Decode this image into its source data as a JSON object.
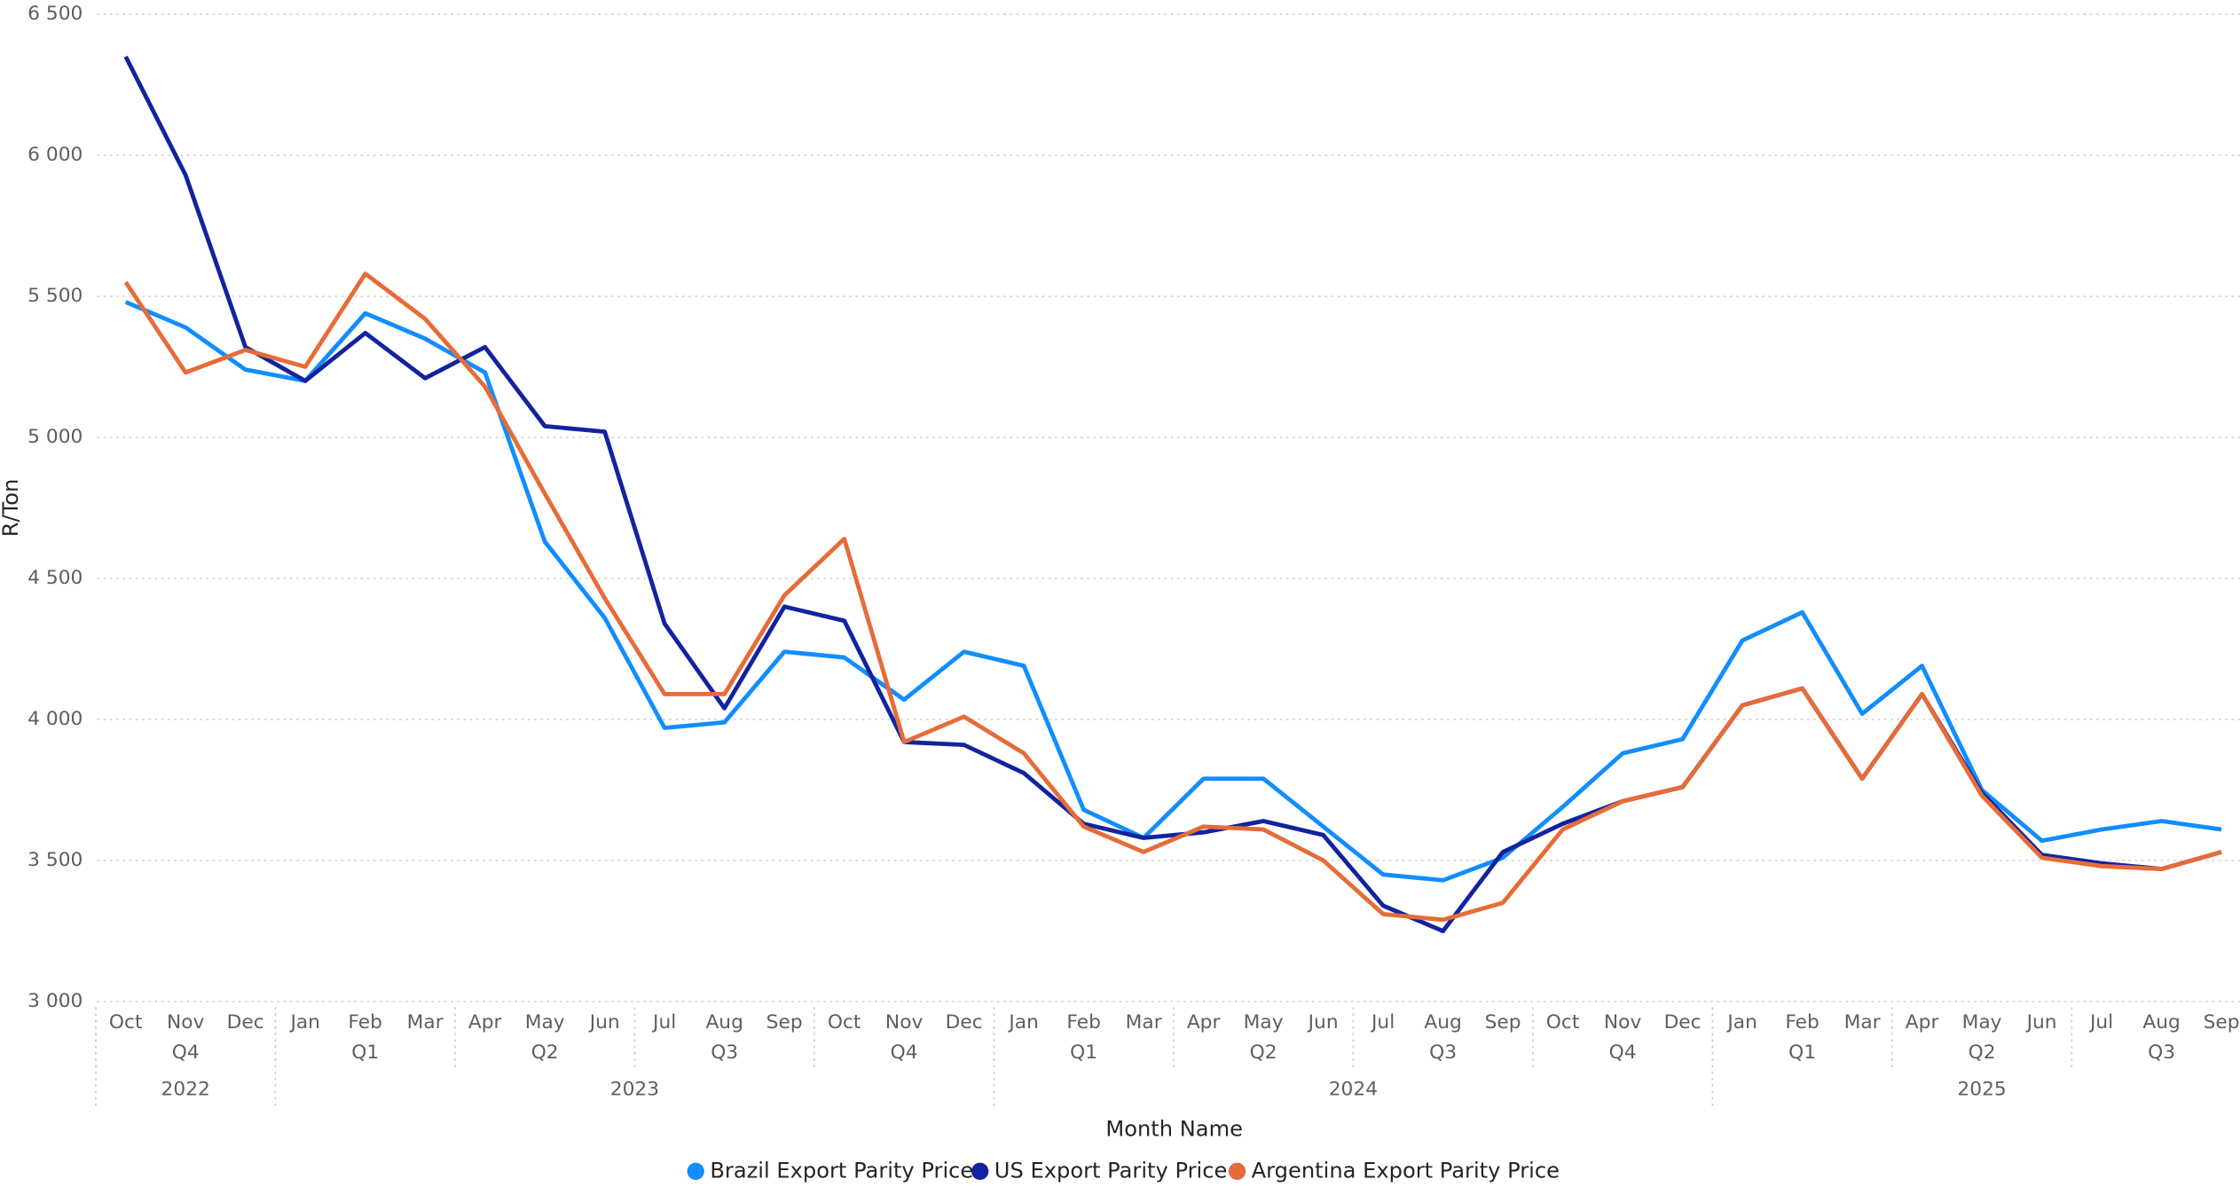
{
  "chart_data": {
    "type": "line",
    "y_label": "R/Ton",
    "x_label": "Month Name",
    "categories": [
      "Oct",
      "Nov",
      "Dec",
      "Jan",
      "Feb",
      "Mar",
      "Apr",
      "May",
      "Jun",
      "Jul",
      "Aug",
      "Sep",
      "Oct",
      "Nov",
      "Dec",
      "Jan",
      "Feb",
      "Mar",
      "Apr",
      "May",
      "Jun",
      "Jul",
      "Aug",
      "Sep",
      "Oct",
      "Nov",
      "Dec",
      "Jan",
      "Feb",
      "Mar",
      "Apr",
      "May",
      "Jun",
      "Jul",
      "Aug",
      "Sep"
    ],
    "quarters": [
      "Q4",
      "Q1",
      "Q2",
      "Q3",
      "Q4",
      "Q1",
      "Q2",
      "Q3",
      "Q4",
      "Q1",
      "Q2",
      "Q3"
    ],
    "years": [
      "2022",
      "2023",
      "2024",
      "2025"
    ],
    "ylim": [
      3000,
      6500
    ],
    "yticks": [
      {
        "value": 3000,
        "label": "3 000"
      },
      {
        "value": 3500,
        "label": "3 500"
      },
      {
        "value": 4000,
        "label": "4 000"
      },
      {
        "value": 4500,
        "label": "4 500"
      },
      {
        "value": 5000,
        "label": "5 000"
      },
      {
        "value": 5500,
        "label": "5 500"
      },
      {
        "value": 6000,
        "label": "6 000"
      },
      {
        "value": 6500,
        "label": "6 500"
      }
    ],
    "grid": true,
    "legend": "bottom",
    "series": [
      {
        "name": "Brazil Export Parity Price",
        "color": "#118DFF",
        "values": [
          5480,
          5390,
          5240,
          5200,
          5440,
          5350,
          5230,
          4630,
          4360,
          3970,
          3990,
          4240,
          4220,
          4070,
          4240,
          4190,
          3680,
          3580,
          3790,
          3790,
          3620,
          3450,
          3430,
          3510,
          3690,
          3880,
          3930,
          4280,
          4380,
          4020,
          4190,
          3750,
          3570,
          3610,
          3640,
          3610
        ]
      },
      {
        "name": "US Export Parity Price",
        "color": "#12239E",
        "values": [
          6350,
          5930,
          5320,
          5200,
          5370,
          5210,
          5320,
          5040,
          5020,
          4340,
          4040,
          4400,
          4350,
          3920,
          3910,
          3810,
          3630,
          3580,
          3600,
          3640,
          3590,
          3340,
          3250,
          3530,
          3630,
          3710,
          3760,
          4050,
          4110,
          3790,
          4090,
          3740,
          3520,
          3490,
          3470,
          3530
        ]
      },
      {
        "name": "Argentina Export Parity Price",
        "color": "#E66C37",
        "values": [
          5550,
          5230,
          5310,
          5250,
          5580,
          5420,
          5180,
          4800,
          4430,
          4090,
          4090,
          4440,
          4640,
          3920,
          4010,
          3880,
          3620,
          3530,
          3620,
          3610,
          3500,
          3310,
          3290,
          3350,
          3610,
          3710,
          3760,
          4050,
          4110,
          3790,
          4090,
          3730,
          3510,
          3480,
          3470,
          3530
        ]
      }
    ]
  }
}
